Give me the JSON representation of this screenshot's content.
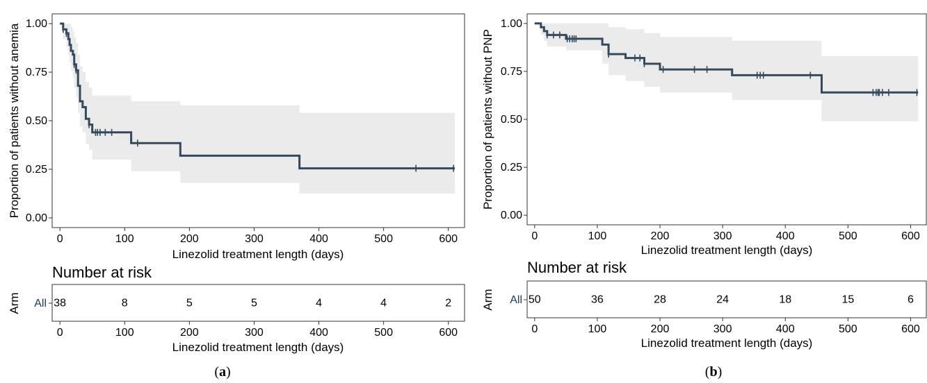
{
  "chart_data": [
    {
      "type": "line",
      "subtype": "kaplan-meier",
      "panel_label": {
        "open": "(",
        "letter": "a",
        "close": ")"
      },
      "xlabel": "Linezolid treatment length (days)",
      "ylabel": "Proportion of patients without anemia",
      "xlim": [
        -12,
        625
      ],
      "ylim": [
        -0.05,
        1.05
      ],
      "xticks": [
        0,
        100,
        200,
        300,
        400,
        500,
        600
      ],
      "yticks": [
        0.0,
        0.25,
        0.5,
        0.75,
        1.0
      ],
      "ytick_labels": [
        "0.00",
        "0.25",
        "0.50",
        "0.75",
        "1.00"
      ],
      "line_color": "#34495e",
      "band_color": "#ebebeb",
      "survival": {
        "x": [
          0,
          5,
          10,
          13,
          15,
          17,
          20,
          22,
          25,
          28,
          31,
          35,
          40,
          45,
          50,
          110,
          186,
          370,
          610
        ],
        "y": [
          1.0,
          0.97,
          0.95,
          0.92,
          0.89,
          0.86,
          0.84,
          0.79,
          0.76,
          0.68,
          0.6,
          0.57,
          0.51,
          0.48,
          0.44,
          0.385,
          0.32,
          0.255,
          0.255
        ]
      },
      "ci_upper": [
        1.0,
        1.0,
        1.0,
        1.0,
        1.0,
        0.98,
        0.96,
        0.93,
        0.9,
        0.84,
        0.78,
        0.75,
        0.7,
        0.67,
        0.63,
        0.6,
        0.58,
        0.54,
        0.54
      ],
      "ci_lower": [
        1.0,
        0.92,
        0.88,
        0.84,
        0.8,
        0.76,
        0.72,
        0.67,
        0.62,
        0.54,
        0.47,
        0.44,
        0.38,
        0.35,
        0.3,
        0.24,
        0.18,
        0.125,
        0.125
      ],
      "censor_x": [
        5,
        10,
        22,
        25,
        45,
        55,
        58,
        62,
        70,
        80,
        120,
        550,
        608
      ],
      "risk_table": {
        "title": "Number at risk",
        "ylabel": "Arm",
        "arm": "All",
        "times": [
          0,
          100,
          200,
          300,
          400,
          500,
          600
        ],
        "counts": [
          "38",
          "8",
          "5",
          "5",
          "4",
          "4",
          "2"
        ],
        "xlabel": "Linezolid treatment length (days)"
      }
    },
    {
      "type": "line",
      "subtype": "kaplan-meier",
      "panel_label": {
        "open": "(",
        "letter": "b",
        "close": ")"
      },
      "xlabel": "Linezolid treatment length (days)",
      "ylabel": "Proportion of patients without PNP",
      "xlim": [
        -12,
        625
      ],
      "ylim": [
        -0.05,
        1.05
      ],
      "xticks": [
        0,
        100,
        200,
        300,
        400,
        500,
        600
      ],
      "yticks": [
        0.0,
        0.25,
        0.5,
        0.75,
        1.0
      ],
      "ytick_labels": [
        "0.00",
        "0.25",
        "0.50",
        "0.75",
        "1.00"
      ],
      "line_color": "#34495e",
      "band_color": "#ebebeb",
      "survival": {
        "x": [
          0,
          10,
          15,
          20,
          50,
          108,
          118,
          145,
          175,
          200,
          315,
          458,
          612
        ],
        "y": [
          1.0,
          0.98,
          0.96,
          0.94,
          0.92,
          0.89,
          0.84,
          0.82,
          0.79,
          0.76,
          0.73,
          0.64,
          0.64
        ]
      },
      "ci_upper": [
        1.0,
        1.0,
        1.0,
        1.0,
        1.0,
        1.0,
        0.98,
        0.97,
        0.95,
        0.93,
        0.91,
        0.83,
        0.83
      ],
      "ci_lower": [
        1.0,
        0.94,
        0.91,
        0.88,
        0.86,
        0.79,
        0.73,
        0.7,
        0.67,
        0.64,
        0.6,
        0.49,
        0.49
      ],
      "censor_x": [
        20,
        30,
        40,
        52,
        56,
        60,
        63,
        66,
        118,
        160,
        168,
        175,
        205,
        255,
        275,
        355,
        360,
        365,
        440,
        540,
        545,
        548,
        550,
        555,
        565,
        610
      ],
      "risk_table": {
        "title": "Number at risk",
        "ylabel": "Arm",
        "arm": "All",
        "times": [
          0,
          100,
          200,
          300,
          400,
          500,
          600
        ],
        "counts": [
          "50",
          "36",
          "28",
          "24",
          "18",
          "15",
          "6"
        ],
        "xlabel": "Linezolid treatment length (days)"
      }
    }
  ]
}
